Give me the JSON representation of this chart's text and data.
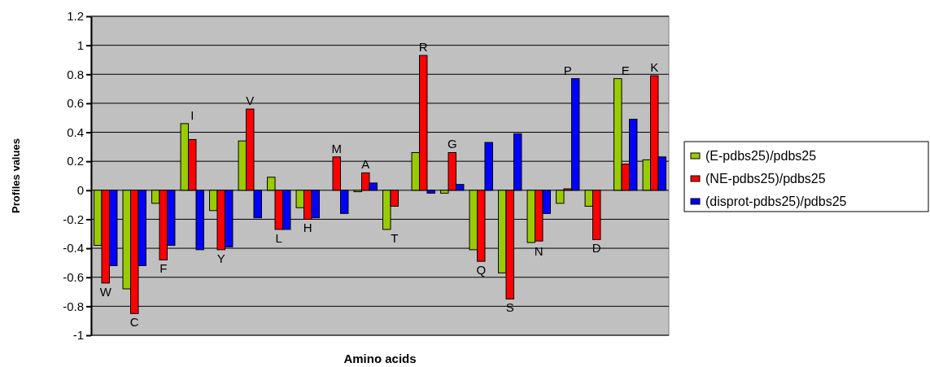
{
  "chart_data": {
    "type": "bar",
    "xlabel": "Amino acids",
    "ylabel": "Profiles values",
    "categories": [
      "W",
      "C",
      "F",
      "I",
      "Y",
      "V",
      "L",
      "H",
      "M",
      "A",
      "T",
      "R",
      "G",
      "Q",
      "S",
      "N",
      "P",
      "D",
      "E",
      "K"
    ],
    "series": [
      {
        "name": "(E-pdbs25)/pdbs25",
        "color": "#99cc00",
        "values": [
          -0.38,
          -0.68,
          -0.09,
          0.46,
          -0.14,
          0.34,
          0.09,
          -0.12,
          0,
          -0.01,
          -0.27,
          0.26,
          -0.02,
          -0.41,
          -0.57,
          -0.36,
          -0.09,
          -0.11,
          0.77,
          0.21
        ]
      },
      {
        "name": "(NE-pdbs25)/pdbs25",
        "color": "#ff0000",
        "values": [
          -0.64,
          -0.85,
          -0.48,
          0.35,
          -0.41,
          0.56,
          -0.27,
          -0.2,
          0.23,
          0.12,
          -0.11,
          0.93,
          0.26,
          -0.49,
          -0.75,
          -0.35,
          0.01,
          -0.34,
          0.18,
          0.79
        ]
      },
      {
        "name": "(disprot-pdbs25)/pdbs25",
        "color": "#0000ff",
        "values": [
          -0.52,
          -0.52,
          -0.38,
          -0.41,
          -0.39,
          -0.19,
          -0.27,
          -0.19,
          -0.16,
          0.05,
          0,
          -0.02,
          0.04,
          0.33,
          0.39,
          -0.16,
          0.77,
          0,
          0.49,
          0.23
        ]
      }
    ],
    "ylim": [
      -1,
      1.2
    ],
    "yticks": [
      -1,
      -0.8,
      -0.6,
      -0.4,
      -0.2,
      0,
      0.2,
      0.4,
      0.6,
      0.8,
      1,
      1.2
    ],
    "grid": "y",
    "legend": "right"
  }
}
